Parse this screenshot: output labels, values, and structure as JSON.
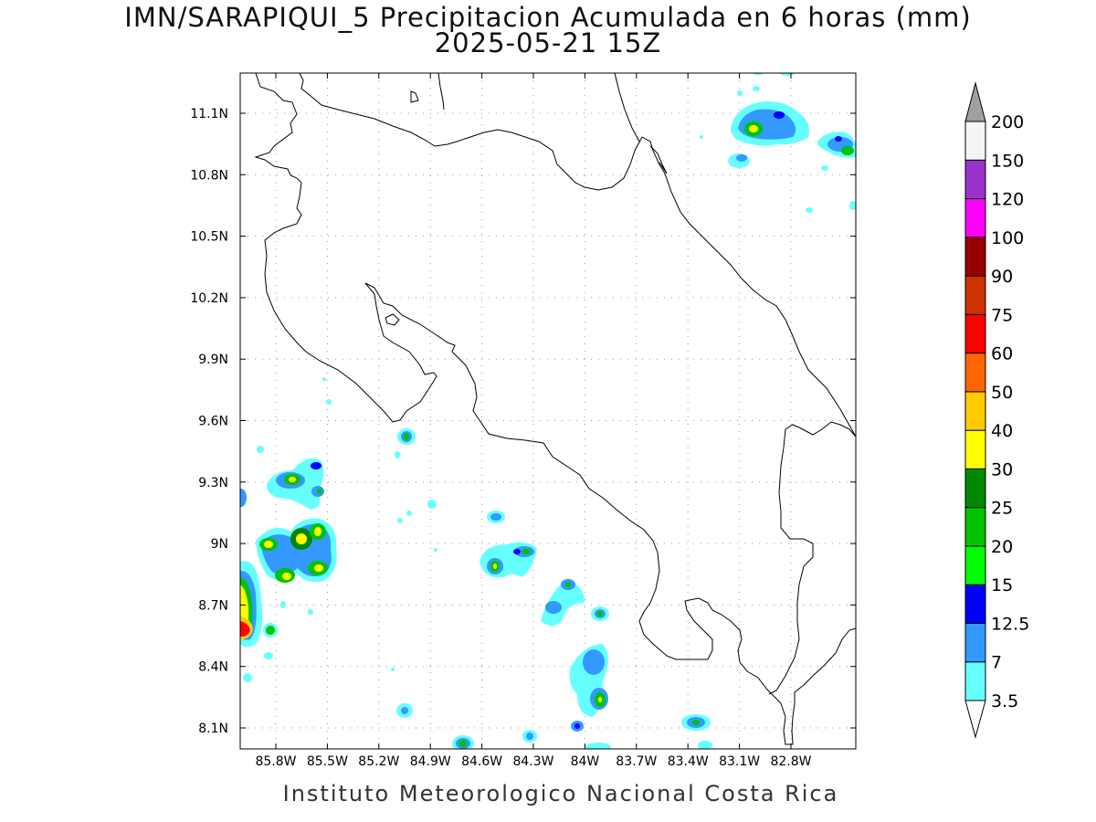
{
  "title": {
    "line1": "IMN/SARAPIQUI_5 Precipitacion Acumulada en 6 horas (mm)",
    "line2": "2025-05-21 15Z"
  },
  "credit": "Instituto Meteorologico Nacional Costa Rica",
  "axes": {
    "lat_ticks": [
      "11.1N",
      "10.8N",
      "10.5N",
      "10.2N",
      "9.9N",
      "9.6N",
      "9.3N",
      "9N",
      "8.7N",
      "8.4N",
      "8.1N"
    ],
    "lon_ticks": [
      "85.8W",
      "85.5W",
      "85.2W",
      "84.9W",
      "84.6W",
      "84.3W",
      "84W",
      "83.7W",
      "83.4W",
      "83.1W",
      "82.8W"
    ],
    "grid": "dotted"
  },
  "colorbar": {
    "labels": [
      "3.5",
      "7",
      "12.5",
      "15",
      "20",
      "25",
      "30",
      "40",
      "50",
      "60",
      "75",
      "90",
      "100",
      "120",
      "150",
      "200"
    ],
    "colors": [
      "#66ffff",
      "#3399ff",
      "#0000ff",
      "#00ff00",
      "#00c400",
      "#008800",
      "#ffff00",
      "#ffcc00",
      "#ff6600",
      "#ff0000",
      "#cc3300",
      "#990000",
      "#ff00ff",
      "#9933cc",
      "#f5f5f5",
      "#a0a0a0"
    ]
  },
  "legend_colors": {
    "c35": "#66ffff",
    "c7": "#3399ff",
    "c125": "#0000ff",
    "c15": "#00ff00",
    "c20": "#00c400",
    "c25": "#008800",
    "c30": "#ffff00",
    "c40": "#ffcc00",
    "c60": "#ff0000"
  }
}
